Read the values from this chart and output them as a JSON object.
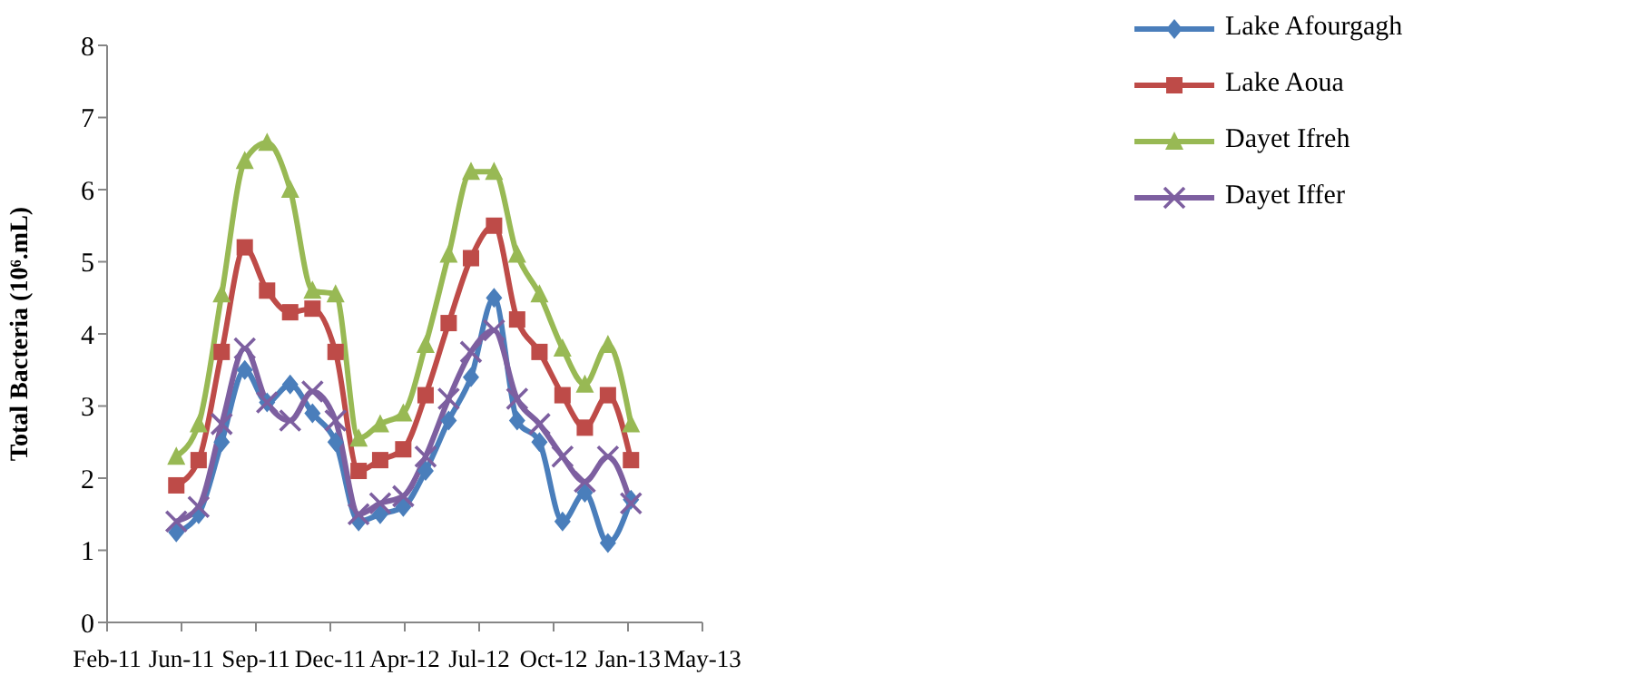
{
  "chart_data": {
    "type": "line",
    "ylabel": "Total Bacteria (10⁶.mL)",
    "x": [
      "2011-06",
      "2011-07",
      "2011-08",
      "2011-09",
      "2011-10",
      "2011-11",
      "2011-12",
      "2012-01",
      "2012-02",
      "2012-03",
      "2012-04",
      "2012-05",
      "2012-06",
      "2012-07",
      "2012-08",
      "2012-09",
      "2012-10",
      "2012-11",
      "2012-12",
      "2013-01",
      "2013-02"
    ],
    "series": [
      {
        "name": "Lake Afourgagh",
        "color": "#4a7ebb",
        "marker": "diamond",
        "values": [
          1.25,
          1.5,
          2.5,
          3.5,
          3.05,
          3.3,
          2.9,
          2.5,
          1.4,
          1.5,
          1.6,
          2.1,
          2.8,
          3.4,
          4.5,
          2.8,
          2.5,
          1.4,
          1.8,
          1.1,
          1.7
        ]
      },
      {
        "name": "Lake Aoua",
        "color": "#be4b48",
        "marker": "square",
        "values": [
          1.9,
          2.25,
          3.75,
          5.2,
          4.6,
          4.3,
          4.35,
          3.75,
          2.1,
          2.25,
          2.4,
          3.15,
          4.15,
          5.05,
          5.5,
          4.2,
          3.75,
          3.15,
          2.7,
          3.15,
          2.25
        ]
      },
      {
        "name": "Dayet Ifreh",
        "color": "#98b954",
        "marker": "triangle",
        "values": [
          2.3,
          2.75,
          4.55,
          6.4,
          6.65,
          6,
          4.6,
          4.55,
          2.55,
          2.75,
          2.9,
          3.85,
          5.1,
          6.25,
          6.25,
          5.1,
          4.55,
          3.8,
          3.3,
          3.85,
          2.75
        ]
      },
      {
        "name": "Dayet Iffer",
        "color": "#7d5fa0",
        "marker": "cross",
        "values": [
          1.4,
          1.6,
          2.75,
          3.8,
          3.05,
          2.8,
          3.2,
          2.8,
          1.5,
          1.65,
          1.75,
          2.3,
          3.1,
          3.75,
          4.05,
          3.1,
          2.75,
          2.3,
          1.95,
          2.3,
          1.65
        ]
      }
    ],
    "xlim": [
      "2011-02-28",
      "2013-05-08"
    ],
    "xticks": [
      {
        "value": "2011-02-28",
        "label": "Feb-11"
      },
      {
        "value": "2011-06-08",
        "label": "Jun-11"
      },
      {
        "value": "2011-09-16",
        "label": "Sep-11"
      },
      {
        "value": "2011-12-25",
        "label": "Dec-11"
      },
      {
        "value": "2012-04-03",
        "label": "Apr-12"
      },
      {
        "value": "2012-07-12",
        "label": "Jul-12"
      },
      {
        "value": "2012-10-20",
        "label": "Oct-12"
      },
      {
        "value": "2013-01-28",
        "label": "Jan-13"
      },
      {
        "value": "2013-05-08",
        "label": "May-13"
      }
    ],
    "ylim": [
      0,
      8
    ],
    "yticks": [
      0,
      1,
      2,
      3,
      4,
      5,
      6,
      7,
      8
    ],
    "grid": false,
    "legend": "top right",
    "line_style": "solid"
  }
}
